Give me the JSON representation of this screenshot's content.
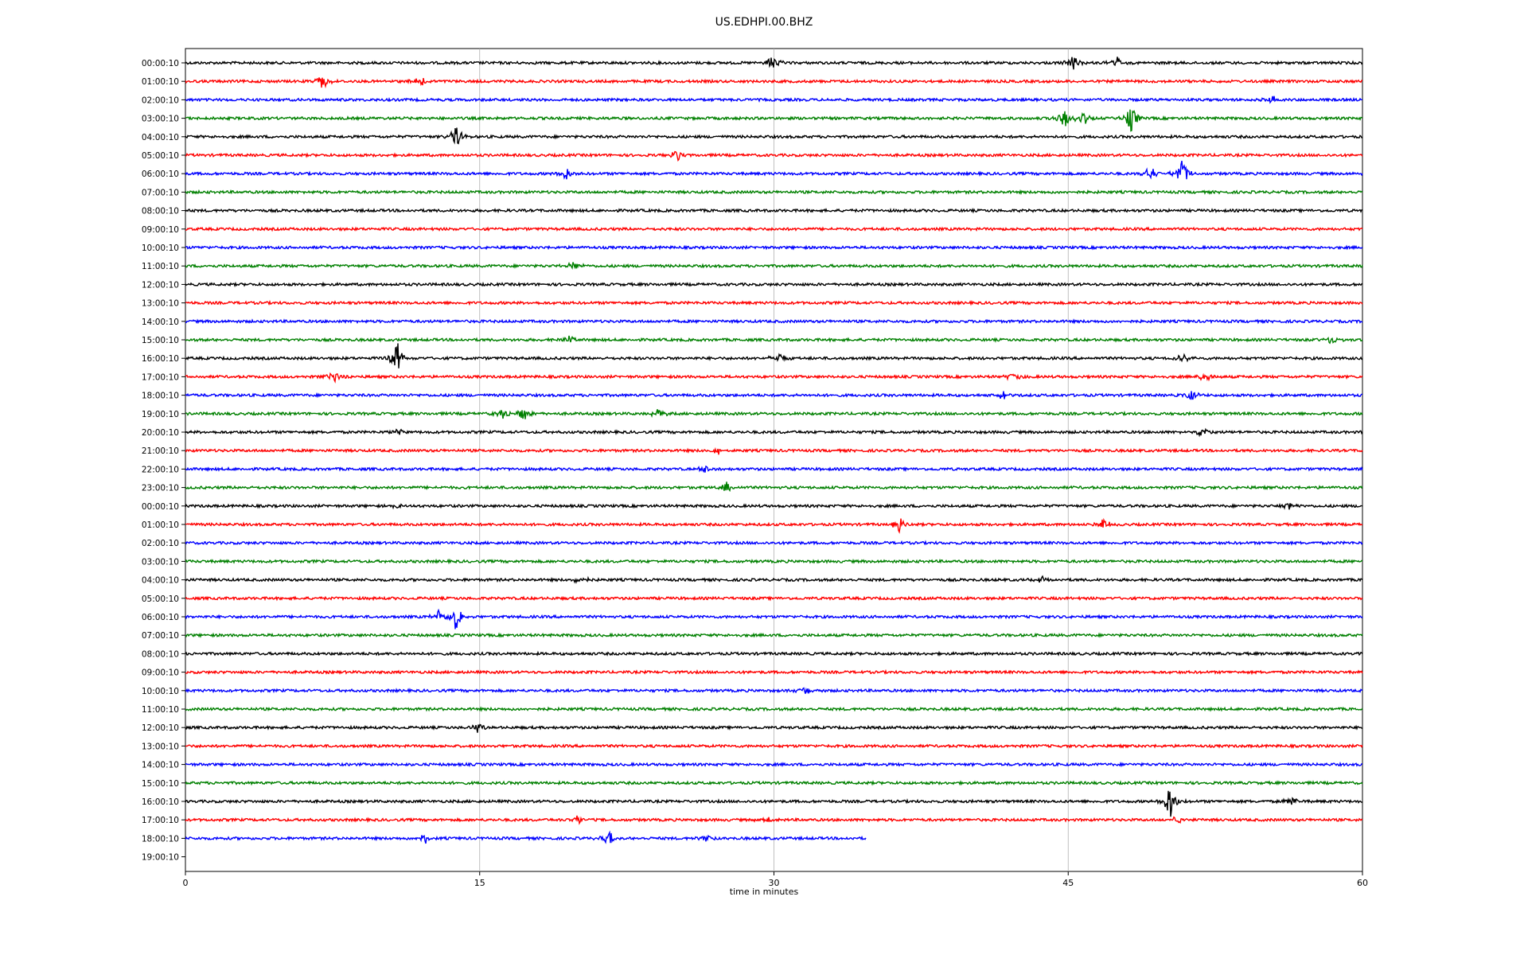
{
  "chart_data": {
    "type": "line",
    "title": "US.EDHPI.00.BHZ",
    "xlabel": "time in minutes",
    "ylabel": "",
    "xlim": [
      0,
      60
    ],
    "x_ticks": [
      "0",
      "15",
      "30",
      "45",
      "60"
    ],
    "grid": "vertical",
    "colors": [
      "#000000",
      "#ff0000",
      "#0000ff",
      "#008000"
    ],
    "row_labels": [
      "00:00:10",
      "01:00:10",
      "02:00:10",
      "03:00:10",
      "04:00:10",
      "05:00:10",
      "06:00:10",
      "07:00:10",
      "08:00:10",
      "09:00:10",
      "10:00:10",
      "11:00:10",
      "12:00:10",
      "13:00:10",
      "14:00:10",
      "15:00:10",
      "16:00:10",
      "17:00:10",
      "18:00:10",
      "19:00:10",
      "20:00:10",
      "21:00:10",
      "22:00:10",
      "23:00:10",
      "00:00:10",
      "01:00:10",
      "02:00:10",
      "03:00:10",
      "04:00:10",
      "05:00:10",
      "06:00:10",
      "07:00:10",
      "08:00:10",
      "09:00:10",
      "10:00:10",
      "11:00:10",
      "12:00:10",
      "13:00:10",
      "14:00:10",
      "15:00:10",
      "16:00:10",
      "17:00:10",
      "18:00:10",
      "19:00:10"
    ],
    "last_trace_end_minute": 34.7,
    "events": [
      {
        "row": 0,
        "minute": 29.9,
        "amp": 1.0
      },
      {
        "row": 0,
        "minute": 45.3,
        "amp": 1.0
      },
      {
        "row": 0,
        "minute": 47.5,
        "amp": 0.7
      },
      {
        "row": 1,
        "minute": 7.0,
        "amp": 0.9
      },
      {
        "row": 1,
        "minute": 11.9,
        "amp": 0.8
      },
      {
        "row": 2,
        "minute": 55.4,
        "amp": 0.5
      },
      {
        "row": 3,
        "minute": 44.8,
        "amp": 1.2
      },
      {
        "row": 3,
        "minute": 45.8,
        "amp": 0.9
      },
      {
        "row": 3,
        "minute": 48.2,
        "amp": 1.5
      },
      {
        "row": 4,
        "minute": 13.8,
        "amp": 1.3
      },
      {
        "row": 5,
        "minute": 25.1,
        "amp": 0.7
      },
      {
        "row": 6,
        "minute": 19.4,
        "amp": 0.8
      },
      {
        "row": 6,
        "minute": 49.2,
        "amp": 0.9
      },
      {
        "row": 6,
        "minute": 50.8,
        "amp": 1.8
      },
      {
        "row": 11,
        "minute": 19.8,
        "amp": 0.5
      },
      {
        "row": 15,
        "minute": 19.6,
        "amp": 0.4
      },
      {
        "row": 15,
        "minute": 58.4,
        "amp": 0.5
      },
      {
        "row": 16,
        "minute": 10.8,
        "amp": 1.8
      },
      {
        "row": 16,
        "minute": 30.2,
        "amp": 0.8
      },
      {
        "row": 16,
        "minute": 50.8,
        "amp": 0.6
      },
      {
        "row": 17,
        "minute": 7.6,
        "amp": 0.7
      },
      {
        "row": 17,
        "minute": 42.2,
        "amp": 0.6
      },
      {
        "row": 17,
        "minute": 52.0,
        "amp": 0.6
      },
      {
        "row": 18,
        "minute": 41.7,
        "amp": 0.6
      },
      {
        "row": 18,
        "minute": 51.3,
        "amp": 0.7
      },
      {
        "row": 19,
        "minute": 17.2,
        "amp": 0.9
      },
      {
        "row": 19,
        "minute": 16.2,
        "amp": 0.6
      },
      {
        "row": 19,
        "minute": 24.1,
        "amp": 0.6
      },
      {
        "row": 20,
        "minute": 10.9,
        "amp": 0.5
      },
      {
        "row": 20,
        "minute": 51.8,
        "amp": 0.7
      },
      {
        "row": 21,
        "minute": 27.2,
        "amp": 0.5
      },
      {
        "row": 22,
        "minute": 26.5,
        "amp": 0.5
      },
      {
        "row": 23,
        "minute": 27.6,
        "amp": 0.6
      },
      {
        "row": 24,
        "minute": 10.9,
        "amp": 0.4
      },
      {
        "row": 24,
        "minute": 56.3,
        "amp": 0.5
      },
      {
        "row": 25,
        "minute": 36.4,
        "amp": 0.9
      },
      {
        "row": 25,
        "minute": 46.8,
        "amp": 0.6
      },
      {
        "row": 28,
        "minute": 20.2,
        "amp": 0.6
      },
      {
        "row": 28,
        "minute": 43.6,
        "amp": 0.4
      },
      {
        "row": 30,
        "minute": 13.8,
        "amp": 1.6
      },
      {
        "row": 30,
        "minute": 12.9,
        "amp": 0.8
      },
      {
        "row": 34,
        "minute": 31.6,
        "amp": 0.5
      },
      {
        "row": 36,
        "minute": 14.9,
        "amp": 0.6
      },
      {
        "row": 40,
        "minute": 50.2,
        "amp": 2.2
      },
      {
        "row": 40,
        "minute": 56.4,
        "amp": 0.6
      },
      {
        "row": 41,
        "minute": 20.0,
        "amp": 0.6
      },
      {
        "row": 41,
        "minute": 29.6,
        "amp": 0.6
      },
      {
        "row": 41,
        "minute": 50.6,
        "amp": 0.5
      },
      {
        "row": 42,
        "minute": 12.2,
        "amp": 0.6
      },
      {
        "row": 42,
        "minute": 21.6,
        "amp": 0.8
      },
      {
        "row": 42,
        "minute": 26.6,
        "amp": 0.5
      }
    ]
  }
}
